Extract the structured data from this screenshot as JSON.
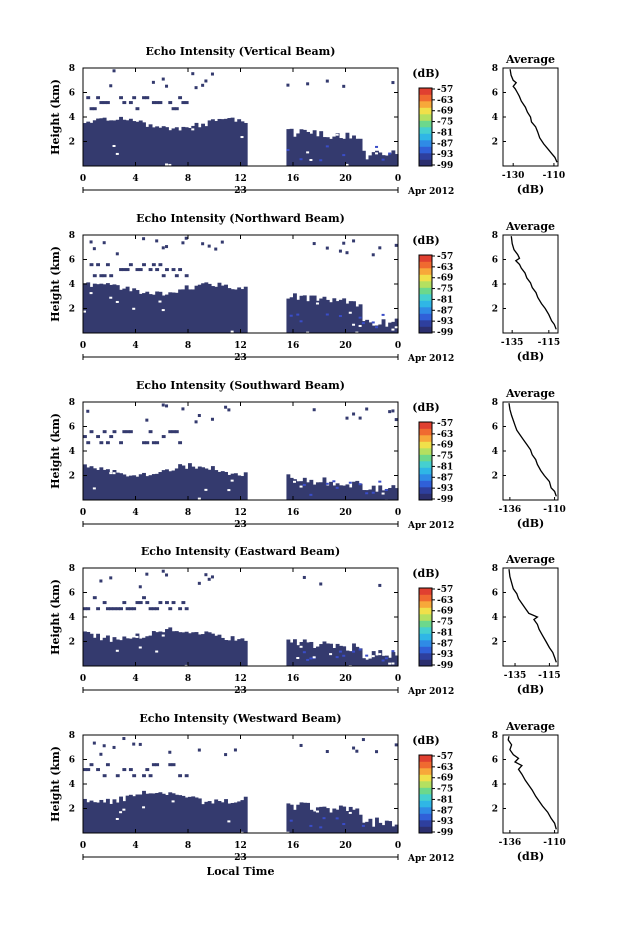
{
  "colors": {
    "echo_fill": "#343a6e",
    "echo_weak": "#3a4dc8",
    "colorbar": [
      "#2c2f6e",
      "#2e3f9e",
      "#3060d8",
      "#2f8be6",
      "#2fb6e6",
      "#45d0d0",
      "#6cd88c",
      "#b4e060",
      "#f0e04a",
      "#f7a83a",
      "#f06a30",
      "#e04030"
    ]
  },
  "chart_data": [
    {
      "type": "heatmap",
      "title": "Echo Intensity (Vertical Beam)",
      "ylabel": "Height (km)",
      "xlabel": "",
      "date_label": "Apr 2012",
      "day_label": "23",
      "xticks": [
        "0",
        "4",
        "8",
        "12",
        "16",
        "20",
        "0"
      ],
      "yticks": [
        "8",
        "6",
        "4",
        "2"
      ],
      "xlim": [
        0,
        24
      ],
      "ylim": [
        0,
        8
      ],
      "data_gap_hours": [
        12.5,
        15.3
      ],
      "colorbar": {
        "unit": "(dB)",
        "ticks": [
          "-57",
          "-63",
          "-69",
          "-75",
          "-81",
          "-87",
          "-93",
          "-99"
        ]
      },
      "profile": {
        "title": "Average",
        "xlabel": "(dB)",
        "xticks": [
          "-130",
          "-110"
        ],
        "yticks": [
          "8",
          "6",
          "4",
          "2"
        ],
        "xlim": [
          -135,
          -108
        ],
        "ylim": [
          0,
          8
        ],
        "points": [
          [
            -108.5,
            0.3
          ],
          [
            -109.5,
            0.7
          ],
          [
            -111,
            1.0
          ],
          [
            -113,
            1.4
          ],
          [
            -115,
            1.8
          ],
          [
            -117,
            2.3
          ],
          [
            -118,
            2.8
          ],
          [
            -119,
            3.2
          ],
          [
            -121,
            3.6
          ],
          [
            -121.5,
            4.0
          ],
          [
            -123,
            4.4
          ],
          [
            -124,
            4.8
          ],
          [
            -126,
            5.3
          ],
          [
            -127,
            5.7
          ],
          [
            -128,
            6.0
          ],
          [
            -129,
            6.3
          ],
          [
            -130,
            6.5
          ],
          [
            -128.5,
            6.8
          ],
          [
            -130,
            7.0
          ],
          [
            -131,
            7.4
          ],
          [
            -131.5,
            7.9
          ]
        ]
      }
    },
    {
      "type": "heatmap",
      "title": "Echo Intensity (Northward Beam)",
      "ylabel": "Height (km)",
      "xlabel": "",
      "date_label": "Apr 2012",
      "day_label": "23",
      "xticks": [
        "0",
        "4",
        "8",
        "12",
        "16",
        "20",
        "0"
      ],
      "yticks": [
        "8",
        "6",
        "4",
        "2"
      ],
      "xlim": [
        0,
        24
      ],
      "ylim": [
        0,
        8
      ],
      "data_gap_hours": [
        12.5,
        15.3
      ],
      "colorbar": {
        "unit": "(dB)",
        "ticks": [
          "-57",
          "-63",
          "-69",
          "-75",
          "-81",
          "-87",
          "-93",
          "-99"
        ]
      },
      "profile": {
        "title": "Average",
        "xlabel": "(dB)",
        "xticks": [
          "-135",
          "-115"
        ],
        "yticks": [
          "8",
          "6",
          "4",
          "2"
        ],
        "xlim": [
          -140,
          -110
        ],
        "ylim": [
          0,
          8
        ],
        "points": [
          [
            -111,
            0.3
          ],
          [
            -112,
            0.7
          ],
          [
            -113.5,
            1.0
          ],
          [
            -115,
            1.5
          ],
          [
            -117,
            2.0
          ],
          [
            -119,
            2.4
          ],
          [
            -121,
            2.9
          ],
          [
            -122,
            3.3
          ],
          [
            -124,
            3.7
          ],
          [
            -125,
            4.1
          ],
          [
            -127,
            4.5
          ],
          [
            -128,
            4.9
          ],
          [
            -130,
            5.3
          ],
          [
            -131,
            5.6
          ],
          [
            -133,
            5.9
          ],
          [
            -131,
            6.1
          ],
          [
            -132,
            6.4
          ],
          [
            -134,
            6.8
          ],
          [
            -135,
            7.3
          ],
          [
            -135.5,
            7.9
          ]
        ]
      }
    },
    {
      "type": "heatmap",
      "title": "Echo Intensity (Southward Beam)",
      "ylabel": "Height (km)",
      "xlabel": "",
      "date_label": "Apr 2012",
      "day_label": "23",
      "xticks": [
        "0",
        "4",
        "8",
        "12",
        "16",
        "20",
        "0"
      ],
      "yticks": [
        "8",
        "6",
        "4",
        "2"
      ],
      "xlim": [
        0,
        24
      ],
      "ylim": [
        0,
        8
      ],
      "data_gap_hours": [
        12.5,
        15.3
      ],
      "colorbar": {
        "unit": "(dB)",
        "ticks": [
          "-57",
          "-63",
          "-69",
          "-75",
          "-81",
          "-87",
          "-93",
          "-99"
        ]
      },
      "profile": {
        "title": "Average",
        "xlabel": "(dB)",
        "xticks": [
          "-136",
          "-110"
        ],
        "yticks": [
          "8",
          "6",
          "4",
          "2"
        ],
        "xlim": [
          -140,
          -108
        ],
        "ylim": [
          0,
          8
        ],
        "points": [
          [
            -109,
            0.3
          ],
          [
            -110,
            0.7
          ],
          [
            -112,
            1.0
          ],
          [
            -113,
            1.5
          ],
          [
            -116,
            2.0
          ],
          [
            -118,
            2.4
          ],
          [
            -120,
            2.9
          ],
          [
            -121,
            3.3
          ],
          [
            -123,
            3.7
          ],
          [
            -124,
            4.1
          ],
          [
            -126,
            4.5
          ],
          [
            -128,
            4.9
          ],
          [
            -130,
            5.3
          ],
          [
            -132,
            5.7
          ],
          [
            -133,
            6.1
          ],
          [
            -134,
            6.5
          ],
          [
            -135,
            6.9
          ],
          [
            -136,
            7.4
          ],
          [
            -136.5,
            7.9
          ]
        ]
      }
    },
    {
      "type": "heatmap",
      "title": "Echo Intensity (Eastward Beam)",
      "ylabel": "Height (km)",
      "xlabel": "",
      "date_label": "Apr 2012",
      "day_label": "23",
      "xticks": [
        "0",
        "4",
        "8",
        "12",
        "16",
        "20",
        "0"
      ],
      "yticks": [
        "8",
        "6",
        "4",
        "2"
      ],
      "xlim": [
        0,
        24
      ],
      "ylim": [
        0,
        8
      ],
      "data_gap_hours": [
        12.5,
        15.3
      ],
      "colorbar": {
        "unit": "(dB)",
        "ticks": [
          "-57",
          "-63",
          "-69",
          "-75",
          "-81",
          "-87",
          "-93",
          "-99"
        ]
      },
      "profile": {
        "title": "Average",
        "xlabel": "(dB)",
        "xticks": [
          "-135",
          "-115"
        ],
        "yticks": [
          "8",
          "6",
          "4",
          "2"
        ],
        "xlim": [
          -142,
          -110
        ],
        "ylim": [
          0,
          8
        ],
        "points": [
          [
            -111,
            0.3
          ],
          [
            -112,
            0.7
          ],
          [
            -113,
            1.1
          ],
          [
            -115,
            1.5
          ],
          [
            -117,
            2.0
          ],
          [
            -119,
            2.5
          ],
          [
            -121,
            3.0
          ],
          [
            -122,
            3.4
          ],
          [
            -124,
            3.8
          ],
          [
            -122,
            4.0
          ],
          [
            -127,
            4.3
          ],
          [
            -129,
            4.7
          ],
          [
            -131,
            5.1
          ],
          [
            -133,
            5.5
          ],
          [
            -134,
            5.9
          ],
          [
            -136,
            6.3
          ],
          [
            -137,
            6.8
          ],
          [
            -138,
            7.3
          ],
          [
            -138.5,
            7.9
          ]
        ]
      }
    },
    {
      "type": "heatmap",
      "title": "Echo Intensity (Westward Beam)",
      "ylabel": "Height (km)",
      "xlabel": "Local Time",
      "date_label": "Apr 2012",
      "day_label": "23",
      "xticks": [
        "0",
        "4",
        "8",
        "12",
        "16",
        "20",
        "0"
      ],
      "yticks": [
        "8",
        "6",
        "4",
        "2"
      ],
      "xlim": [
        0,
        24
      ],
      "ylim": [
        0,
        8
      ],
      "data_gap_hours": [
        12.5,
        15.3
      ],
      "colorbar": {
        "unit": "(dB)",
        "ticks": [
          "-57",
          "-63",
          "-69",
          "-75",
          "-81",
          "-87",
          "-93",
          "-99"
        ]
      },
      "profile": {
        "title": "Average",
        "xlabel": "(dB)",
        "xticks": [
          "-136",
          "-110"
        ],
        "yticks": [
          "8",
          "6",
          "4",
          "2"
        ],
        "xlim": [
          -140,
          -108
        ],
        "ylim": [
          0,
          8
        ],
        "points": [
          [
            -109,
            0.3
          ],
          [
            -110,
            0.8
          ],
          [
            -112,
            1.2
          ],
          [
            -114,
            1.7
          ],
          [
            -117,
            2.2
          ],
          [
            -119,
            2.6
          ],
          [
            -121,
            3.0
          ],
          [
            -123,
            3.5
          ],
          [
            -125,
            3.9
          ],
          [
            -127,
            4.3
          ],
          [
            -129,
            4.8
          ],
          [
            -131,
            5.2
          ],
          [
            -129,
            5.5
          ],
          [
            -133,
            5.8
          ],
          [
            -131,
            6.1
          ],
          [
            -134,
            6.4
          ],
          [
            -136,
            6.8
          ],
          [
            -135,
            7.2
          ],
          [
            -137,
            7.6
          ],
          [
            -136.5,
            7.9
          ]
        ]
      }
    }
  ]
}
